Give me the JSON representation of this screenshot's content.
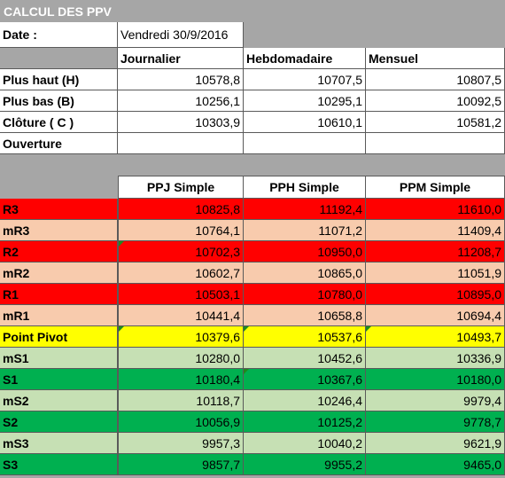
{
  "title": "CALCUL DES PPV",
  "date": {
    "label": "Date :",
    "value": "Vendredi 30/9/2016"
  },
  "period_headers": [
    "Journalier",
    "Hebdomadaire",
    "Mensuel"
  ],
  "inputs": [
    {
      "label": "Plus haut (H)",
      "values": [
        "10578,8",
        "10707,5",
        "10807,5"
      ]
    },
    {
      "label": "Plus bas (B)",
      "values": [
        "10256,1",
        "10295,1",
        "10092,5"
      ]
    },
    {
      "label": "Clôture ( C )",
      "values": [
        "10303,9",
        "10610,1",
        "10581,2"
      ]
    },
    {
      "label": "Ouverture",
      "values": [
        "",
        "",
        ""
      ]
    }
  ],
  "pivot_headers": [
    "PPJ Simple",
    "PPH Simple",
    "PPM Simple"
  ],
  "colors": {
    "resistance": "#ff0000",
    "mid_resistance": "#f8cbad",
    "pivot": "#ffff00",
    "mid_support": "#c6e0b4",
    "support": "#00b050",
    "background": "#a6a6a6",
    "corner_marker": "#1e8a1e"
  },
  "levels": [
    {
      "label": "R3",
      "tone": "resistance",
      "values": [
        "10825,8",
        "11192,4",
        "11610,0"
      ]
    },
    {
      "label": "mR3",
      "tone": "mid_resistance",
      "values": [
        "10764,1",
        "11071,2",
        "11409,4"
      ]
    },
    {
      "label": "R2",
      "tone": "resistance",
      "values": [
        "10702,3",
        "10950,0",
        "11208,7"
      ]
    },
    {
      "label": "mR2",
      "tone": "mid_resistance",
      "values": [
        "10602,7",
        "10865,0",
        "11051,9"
      ]
    },
    {
      "label": "R1",
      "tone": "resistance",
      "values": [
        "10503,1",
        "10780,0",
        "10895,0"
      ]
    },
    {
      "label": "mR1",
      "tone": "mid_resistance",
      "values": [
        "10441,4",
        "10658,8",
        "10694,4"
      ]
    },
    {
      "label": "Point Pivot",
      "tone": "pivot",
      "values": [
        "10379,6",
        "10537,6",
        "10493,7"
      ]
    },
    {
      "label": "mS1",
      "tone": "mid_support",
      "values": [
        "10280,0",
        "10452,6",
        "10336,9"
      ]
    },
    {
      "label": "S1",
      "tone": "support",
      "values": [
        "10180,4",
        "10367,6",
        "10180,0"
      ]
    },
    {
      "label": "mS2",
      "tone": "mid_support",
      "values": [
        "10118,7",
        "10246,4",
        "9979,4"
      ]
    },
    {
      "label": "S2",
      "tone": "support",
      "values": [
        "10056,9",
        "10125,2",
        "9778,7"
      ]
    },
    {
      "label": "mS3",
      "tone": "mid_support",
      "values": [
        "9957,3",
        "10040,2",
        "9621,9"
      ]
    },
    {
      "label": "S3",
      "tone": "support",
      "values": [
        "9857,7",
        "9955,2",
        "9465,0"
      ]
    }
  ]
}
